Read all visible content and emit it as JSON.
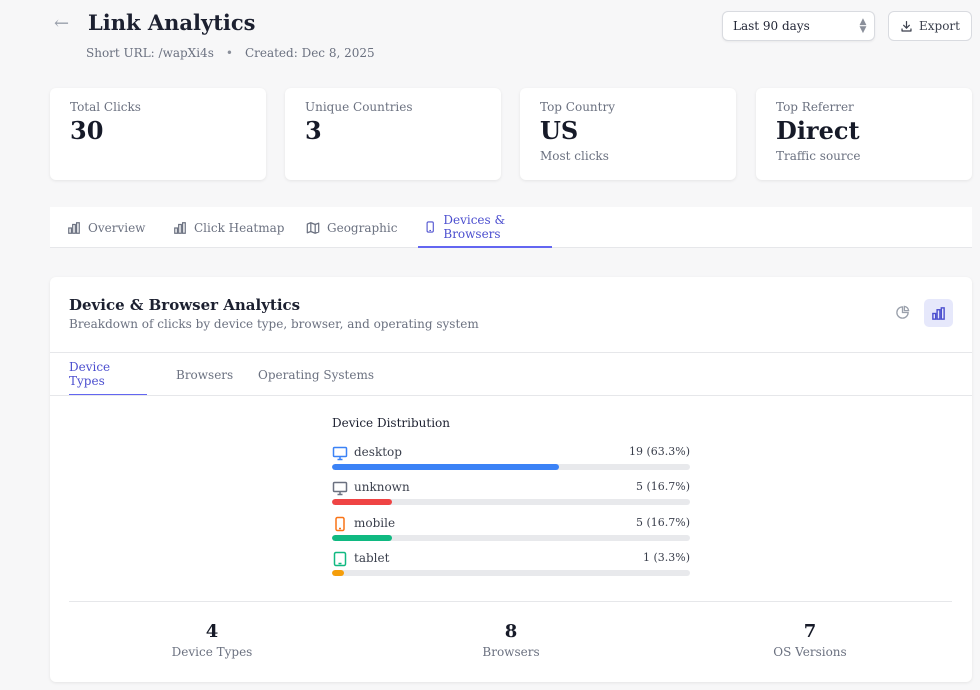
{
  "header": {
    "title": "Link Analytics",
    "short_url": "Short URL: /wapXi4s",
    "separator": "•",
    "created": "Created: Dec 8, 2025",
    "range_value": "Last 90 days",
    "export_label": "Export"
  },
  "stats": [
    {
      "label": "Total Clicks",
      "value": "30",
      "sub": ""
    },
    {
      "label": "Unique Countries",
      "value": "3",
      "sub": ""
    },
    {
      "label": "Top Country",
      "value": "US",
      "sub": "Most clicks"
    },
    {
      "label": "Top Referrer",
      "value": "Direct",
      "sub": "Traffic source"
    }
  ],
  "tabs": [
    {
      "label": "Overview"
    },
    {
      "label": "Click Heatmap"
    },
    {
      "label": "Geographic"
    },
    {
      "label": "Devices & Browsers"
    }
  ],
  "panel": {
    "title": "Device & Browser Analytics",
    "description": "Breakdown of clicks by device type, browser, and operating system",
    "subtabs": [
      "Device Types",
      "Browsers",
      "Operating Systems"
    ],
    "dist_title": "Device Distribution",
    "devices": [
      {
        "name": "desktop",
        "count": "19 (63.3%)",
        "percent": 63.3,
        "color": "#3b82f6",
        "icon": "desktop-icon"
      },
      {
        "name": "unknown",
        "count": "5 (16.7%)",
        "percent": 16.7,
        "color": "#ef4444",
        "icon": "monitor-icon"
      },
      {
        "name": "mobile",
        "count": "5 (16.7%)",
        "percent": 16.7,
        "color": "#10b981",
        "icon": "smartphone-icon"
      },
      {
        "name": "tablet",
        "count": "1 (3.3%)",
        "percent": 3.3,
        "color": "#f59e0b",
        "icon": "tablet-icon"
      }
    ],
    "summary": [
      {
        "num": "4",
        "label": "Device Types"
      },
      {
        "num": "8",
        "label": "Browsers"
      },
      {
        "num": "7",
        "label": "OS Versions"
      }
    ]
  },
  "colors": {
    "accent": "#6366f1",
    "accent_text": "#4c4fcf"
  }
}
